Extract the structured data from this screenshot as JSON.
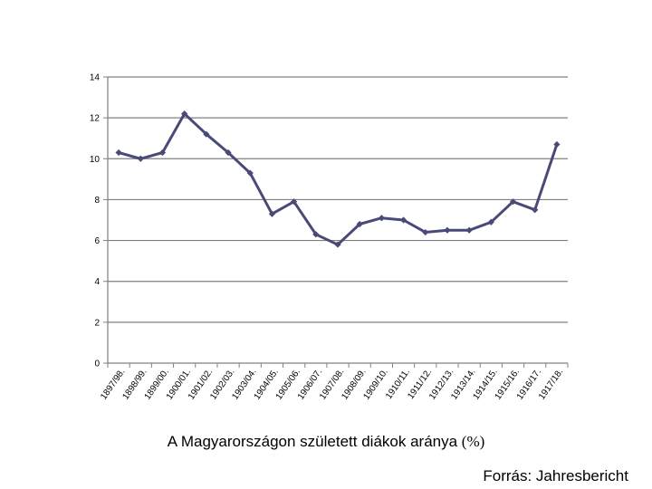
{
  "caption": {
    "text": "A Magyarországon született diákok aránya",
    "unit": "(%)"
  },
  "source": "Forrás: Jahresbericht",
  "chart_data": {
    "type": "line",
    "categories": [
      "1897/98.",
      "1898/99.",
      "1899/00.",
      "1900/01.",
      "1901/02.",
      "1902/03.",
      "1903/04.",
      "1904/05.",
      "1905/06.",
      "1906/07.",
      "1907/08.",
      "1908/09.",
      "1909/10.",
      "1910/11.",
      "1911/12.",
      "1912/13.",
      "1913/14.",
      "1914/15.",
      "1915/16.",
      "1916/17.",
      "1917/18."
    ],
    "series": [
      {
        "values": [
          10.3,
          10.0,
          10.3,
          12.2,
          11.2,
          10.3,
          9.3,
          7.3,
          7.9,
          6.3,
          5.8,
          6.8,
          7.1,
          7.0,
          6.4,
          6.5,
          6.5,
          6.9,
          7.9,
          7.5,
          10.7
        ]
      }
    ],
    "yticks": [
      0,
      2,
      4,
      6,
      8,
      10,
      12,
      14
    ],
    "ylim": [
      0,
      14
    ],
    "grid": true,
    "line_color": "#4a4a78",
    "grid_color": "#808080"
  }
}
